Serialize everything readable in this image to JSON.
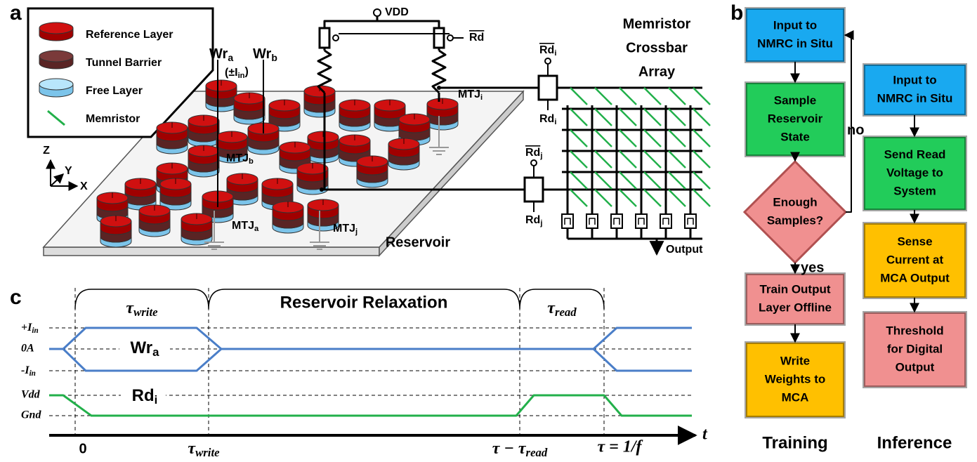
{
  "panel_labels": [
    "a",
    "b",
    "c"
  ],
  "legend": [
    "Reference Layer",
    "Tunnel Barrier",
    "Free Layer",
    "Memristor"
  ],
  "circuit": {
    "vdd": "VDD",
    "rd": {
      "base": "Rd",
      "overline": true
    },
    "wr_a": {
      "base": "Wr",
      "sub": "a"
    },
    "wr_b": {
      "base": "Wr",
      "sub": "b"
    },
    "input": {
      "base": "(±I",
      "sub": "in",
      "tail": ")"
    },
    "rd_i_bar": {
      "base": "Rd",
      "sub": "i",
      "overline": true
    },
    "rd_i": {
      "base": "Rd",
      "sub": "i"
    },
    "rd_j_bar": {
      "base": "Rd",
      "sub": "j",
      "overline": true
    },
    "rd_j": {
      "base": "Rd",
      "sub": "j"
    },
    "mtj_i": {
      "base": "MTJ",
      "sub": "i"
    },
    "mtj_b": {
      "base": "MTJ",
      "sub": "b"
    },
    "mtj_a": {
      "base": "MTJ",
      "sub": "a"
    },
    "mtj_j": {
      "base": "MTJ",
      "sub": "j"
    }
  },
  "axes": [
    "Z",
    "Y",
    "X"
  ],
  "crossbar_title": [
    "Memristor",
    "Crossbar",
    "Array"
  ],
  "reservoir": "Reservoir",
  "output": "Output",
  "flowchart": {
    "training": {
      "title": "Training",
      "nodes": [
        [
          "Input to",
          "NMRC in Situ"
        ],
        [
          "Sample",
          "Reservoir",
          "State"
        ],
        [
          "Enough",
          "Samples?"
        ],
        [
          "Train Output",
          "Layer Offline"
        ],
        [
          "Write",
          "Weights to",
          "MCA"
        ]
      ]
    },
    "inference": {
      "title": "Inference",
      "nodes": [
        [
          "Input to",
          "NMRC in Situ"
        ],
        [
          "Send Read",
          "Voltage to",
          "System"
        ],
        [
          "Sense",
          "Current at",
          "MCA Output"
        ],
        [
          "Threshold",
          "for Digital",
          "Output"
        ]
      ]
    },
    "no": "no",
    "yes": "yes"
  },
  "timing": {
    "phases": [
      {
        "base": "τ",
        "sub": "write"
      },
      "Reservoir Relaxation",
      {
        "base": "τ",
        "sub": "read"
      }
    ],
    "levels": [
      {
        "base": "+I",
        "sub": "in"
      },
      "0A",
      {
        "base": "-I",
        "sub": "in"
      },
      "Vdd",
      "Gnd"
    ],
    "signals": [
      {
        "base": "Wr",
        "sub": "a"
      },
      {
        "base": "Rd",
        "sub": "i"
      }
    ],
    "times": [
      "0",
      {
        "base": "τ",
        "sub": "write"
      },
      {
        "base": "τ − τ",
        "sub": "read"
      },
      "τ = 1/f"
    ],
    "t": "t"
  }
}
